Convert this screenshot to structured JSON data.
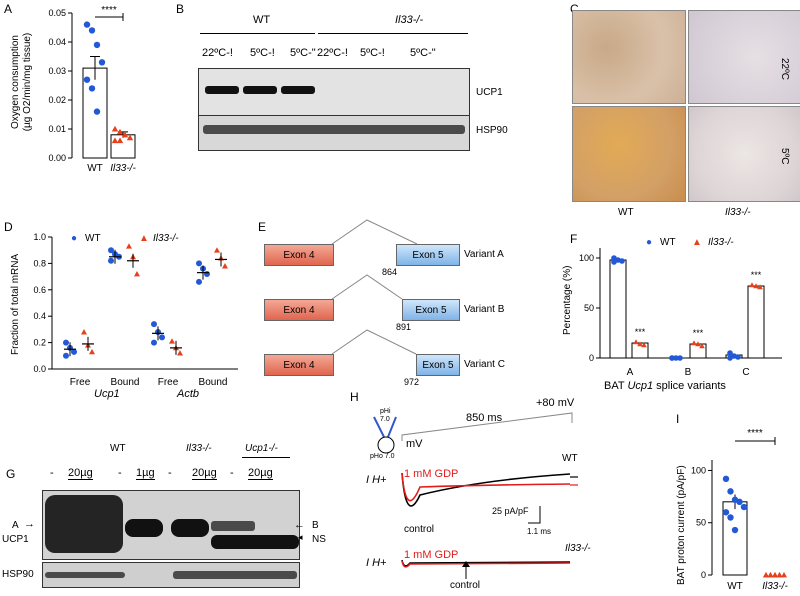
{
  "panels": {
    "A": "A",
    "B": "B",
    "C": "C",
    "D": "D",
    "E": "E",
    "F": "F",
    "G": "G",
    "H": "H",
    "I": "I"
  },
  "panel_a": {
    "ylabel": "Oxygen consumption",
    "ylabel2": "(µg O2/min/mg  tissue)",
    "yticks": [
      "0.00",
      "0.01",
      "0.02",
      "0.03",
      "0.04",
      "0.05"
    ],
    "xcats": [
      "WT",
      "Il33-/-"
    ],
    "sig": "****",
    "colors": {
      "wt": "#2358d6",
      "ko": "#e8401c"
    }
  },
  "panel_b": {
    "group_wt": "WT",
    "group_ko": "Il33-/-",
    "lanes": [
      "22ºC-!",
      "5ºC-!",
      "5ºC-\"",
      "22ºC-!",
      "5ºC-!",
      "5ºC-\""
    ],
    "rows": [
      "UCP1",
      "HSP90"
    ]
  },
  "panel_c": {
    "temps": [
      "22ºC",
      "5ºC"
    ],
    "cols": [
      "WT",
      "Il33-/-"
    ]
  },
  "panel_d": {
    "legend_wt": "WT",
    "legend_ko": "Il33-/-",
    "ylabel": "Fraction of total mRNA",
    "yticks": [
      "0.0",
      "0.2",
      "0.4",
      "0.6",
      "0.8",
      "1.0"
    ],
    "xcats": [
      "Free",
      "Bound",
      "Free",
      "Bound"
    ],
    "genes": [
      "Ucp1",
      "Actb"
    ]
  },
  "panel_e": {
    "exon4": "Exon  4",
    "exon5": "Exon  5",
    "variants": [
      "Variant A",
      "Variant B",
      "Variant C"
    ],
    "positions": [
      "864",
      "891",
      "972"
    ]
  },
  "panel_f": {
    "legend_wt": "WT",
    "legend_ko": "Il33-/-",
    "ylabel": "Percentage (%)",
    "yticks": [
      "0",
      "50",
      "100"
    ],
    "xcats": [
      "A",
      "B",
      "C"
    ],
    "sig": [
      "***",
      "***",
      "***"
    ],
    "xlabel_pre": "BAT ",
    "xlabel_gene": "Ucp1",
    "xlabel_post": " splice variants"
  },
  "panel_g": {
    "group_wt": "WT",
    "group_ko": "Il33-/-",
    "group_ucp": "Ucp1-/-",
    "amounts": [
      "-",
      "20µg",
      "-",
      "1µg",
      "-",
      "20µg",
      "-",
      "20µg"
    ],
    "label_a": "A",
    "label_ucp1": "UCP1",
    "label_b": "B",
    "label_ns": "NS",
    "label_hsp": "HSP90"
  },
  "panel_h": {
    "ph_top": "pHi",
    "ph_top_val": "7.0",
    "ph_bottom": "pHo 7.0",
    "duration": "850 ms",
    "voltage": "+80 mV",
    "mv": "mV",
    "trace_label": "I H+",
    "gdp": "1 mM GDP",
    "control": "control",
    "wt": "WT",
    "ko": "Il33-/-",
    "scale_y": "25 pA/pF",
    "scale_x": "1.1 ms"
  },
  "panel_i": {
    "ylabel": "BAT proton current (pA/pF)",
    "yticks": [
      "0",
      "50",
      "100"
    ],
    "xcats": [
      "WT",
      "Il33-/-"
    ],
    "sig": "****"
  },
  "chart_data": [
    {
      "type": "bar",
      "panel": "A",
      "categories": [
        "WT",
        "Il33-/-"
      ],
      "values": [
        0.031,
        0.008
      ],
      "errors": [
        0.004,
        0.001
      ],
      "points": [
        [
          0.046,
          0.044,
          0.039,
          0.033,
          0.027,
          0.024,
          0.016
        ],
        [
          0.01,
          0.009,
          0.008,
          0.007,
          0.006,
          0.006
        ]
      ],
      "ylabel": "Oxygen consumption (µg O2/min/mg  tissue)",
      "ylim": [
        0,
        0.05
      ]
    },
    {
      "type": "scatter",
      "panel": "D",
      "categories": [
        "Free",
        "Bound",
        "Free",
        "Bound"
      ],
      "series": [
        {
          "name": "WT",
          "means": [
            0.15,
            0.85,
            0.27,
            0.73
          ],
          "points": [
            [
              0.2,
              0.16,
              0.13,
              0.1
            ],
            [
              0.9,
              0.87,
              0.85,
              0.82
            ],
            [
              0.34,
              0.28,
              0.24,
              0.2
            ],
            [
              0.8,
              0.76,
              0.72,
              0.66
            ]
          ]
        },
        {
          "name": "Il33-/-",
          "means": [
            0.19,
            0.82,
            0.16,
            0.83
          ],
          "points": [
            [
              0.28,
              0.18,
              0.13
            ],
            [
              0.93,
              0.85,
              0.72
            ],
            [
              0.21,
              0.16,
              0.12
            ],
            [
              0.9,
              0.84,
              0.78
            ]
          ]
        }
      ],
      "ylabel": "Fraction of total mRNA",
      "ylim": [
        0,
        1.0
      ]
    },
    {
      "type": "bar",
      "panel": "F",
      "categories": [
        "A",
        "B",
        "C"
      ],
      "series": [
        {
          "name": "WT",
          "values": [
            98,
            0,
            3
          ],
          "points": [
            [
              100,
              98,
              97,
              96
            ],
            [
              0,
              0,
              0,
              0
            ],
            [
              5,
              2,
              1,
              0
            ]
          ]
        },
        {
          "name": "Il33-/-",
          "values": [
            15,
            14,
            72
          ],
          "points": [
            [
              16,
              14,
              13
            ],
            [
              15,
              14,
              12
            ],
            [
              73,
              72,
              71
            ]
          ]
        }
      ],
      "xlabel": "BAT Ucp1 splice variants",
      "ylabel": "Percentage (%)",
      "ylim": [
        0,
        110
      ]
    },
    {
      "type": "bar",
      "panel": "I",
      "categories": [
        "WT",
        "Il33-/-"
      ],
      "values": [
        70,
        0
      ],
      "errors": [
        7,
        0.5
      ],
      "points": [
        [
          92,
          80,
          72,
          70,
          65,
          60,
          55,
          43
        ],
        [
          0,
          0,
          0,
          0,
          0,
          0,
          0,
          0,
          0
        ]
      ],
      "ylabel": "BAT proton current (pA/pF)",
      "ylim": [
        0,
        110
      ]
    }
  ]
}
